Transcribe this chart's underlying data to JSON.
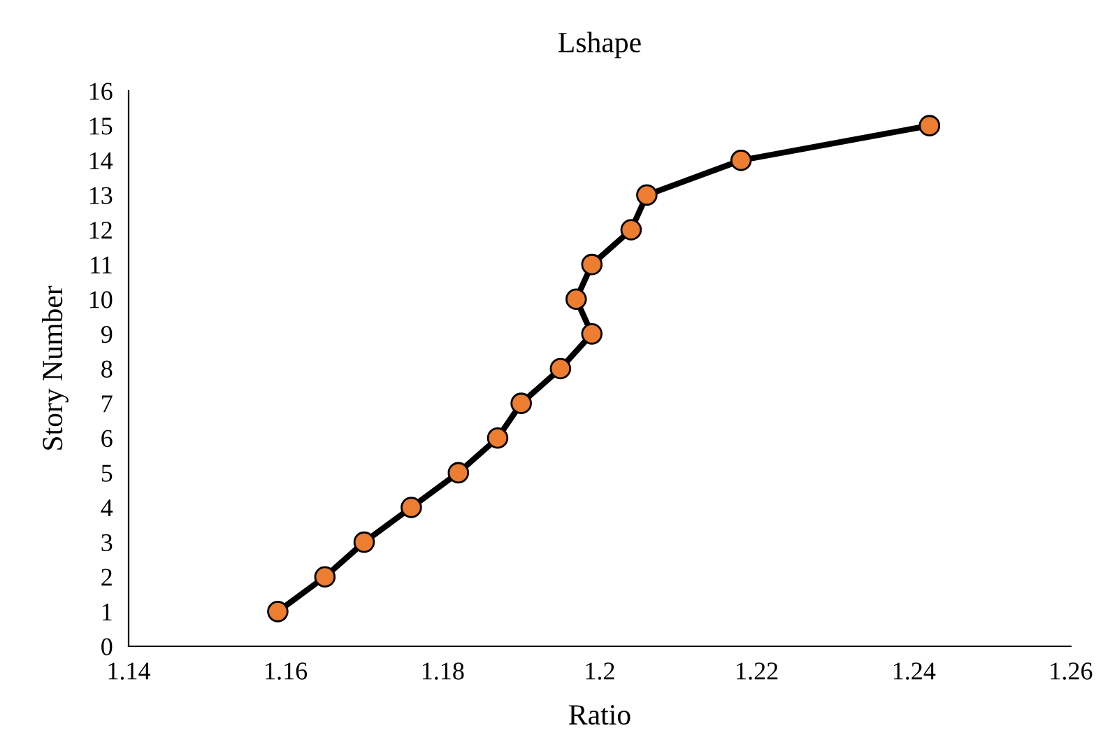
{
  "chart_data": {
    "type": "line",
    "title": "Lshape",
    "xlabel": "Ratio",
    "ylabel": "Story Number",
    "series": [
      {
        "color": "#ed7d31",
        "x": [
          1.159,
          1.165,
          1.17,
          1.176,
          1.182,
          1.187,
          1.19,
          1.195,
          1.199,
          1.197,
          1.199,
          1.204,
          1.206,
          1.218,
          1.242
        ],
        "values": [
          1,
          2,
          3,
          4,
          5,
          6,
          7,
          8,
          9,
          10,
          11,
          12,
          13,
          14,
          15
        ]
      }
    ],
    "xlim": [
      1.14,
      1.26
    ],
    "xticks": [
      {
        "value": 1.14,
        "label": "1.14"
      },
      {
        "value": 1.16,
        "label": "1.16"
      },
      {
        "value": 1.18,
        "label": "1.18"
      },
      {
        "value": 1.2,
        "label": "1.2"
      },
      {
        "value": 1.22,
        "label": "1.22"
      },
      {
        "value": 1.24,
        "label": "1.24"
      },
      {
        "value": 1.26,
        "label": "1.26"
      }
    ],
    "ylim": [
      0,
      16
    ],
    "yticks": [
      0,
      1,
      2,
      3,
      4,
      5,
      6,
      7,
      8,
      9,
      10,
      11,
      12,
      13,
      14,
      15,
      16
    ],
    "marker": "circle",
    "line_style": "solid",
    "grid": false,
    "legend": false
  }
}
